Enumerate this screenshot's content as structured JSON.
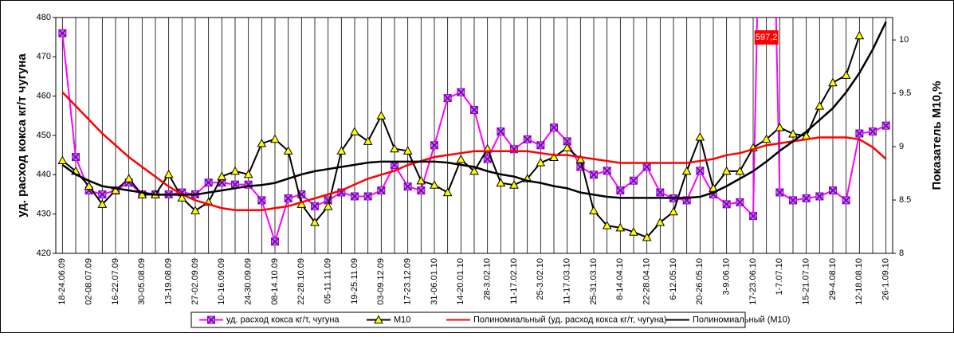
{
  "chart_data": {
    "type": "line",
    "y_label": "уд. расход кокса кг/т чугуна",
    "y2_label": "Показатель М10,%",
    "categories": [
      "18-24.06.09",
      null,
      "02-08.07.09",
      null,
      "16-22.07.09",
      null,
      "30-05.08.09",
      null,
      "13-19.08.09",
      null,
      "27-02.09.09",
      null,
      "10-16.09.09",
      null,
      "24-30.09.09",
      null,
      "08-14.10.09",
      null,
      "22-28.10.09",
      null,
      "05-11.11.09",
      null,
      "19-25.11.09",
      null,
      "03-09.12.09",
      null,
      "17-23.12.09",
      null,
      "31-06.01.10",
      null,
      "14-20.01.10",
      null,
      "28-3.02.10",
      null,
      "11-17.02.10",
      null,
      "25-3.02.10",
      null,
      "11-17.03.10",
      null,
      "25-31.03.10",
      null,
      "8-14.04.10",
      null,
      "22-28.04.10",
      null,
      "6-12.05.10",
      null,
      "20-26.05.10",
      null,
      "3-9.06.10",
      null,
      "17-23.06.10",
      null,
      "1-7.07.10",
      null,
      "15-21.07.10",
      null,
      "29-4.08.10",
      null,
      "12-18.08.10",
      null,
      "26-1.09.10"
    ],
    "ylim": [
      420,
      480
    ],
    "yticks": [
      420,
      430,
      440,
      450,
      460,
      470,
      480
    ],
    "y2lim": [
      8,
      10.21
    ],
    "y2ticks": [
      8,
      8.5,
      9,
      9.5,
      10
    ],
    "grid": "x",
    "legend": "bottom",
    "series": [
      {
        "name": "уд. расход кокса кг/т, чугуна",
        "color": "#ff00ff",
        "marker": "square-x",
        "values": [
          476,
          444.5,
          436,
          435,
          436,
          438,
          435,
          435,
          435,
          435.5,
          435,
          438,
          438,
          437.5,
          437.5,
          433.5,
          423,
          434,
          435,
          432,
          433.5,
          435.5,
          434.5,
          434.5,
          436,
          442.5,
          437,
          436,
          447.5,
          459.5,
          461,
          456.5,
          444,
          451,
          446.5,
          449,
          447.5,
          452,
          448.5,
          442,
          440,
          441,
          436,
          438.5,
          442,
          435.5,
          434,
          433.5,
          441,
          435,
          432.5,
          433,
          429.5,
          597.2,
          435.5,
          433.5,
          434,
          434.5,
          436,
          433.5,
          450.5,
          451,
          452.5
        ],
        "value_labels": [
          null,
          null,
          null,
          null,
          null,
          null,
          null,
          null,
          null,
          null,
          null,
          null,
          null,
          null,
          null,
          null,
          null,
          null,
          null,
          null,
          null,
          null,
          null,
          null,
          null,
          null,
          null,
          null,
          null,
          null,
          null,
          null,
          null,
          null,
          null,
          null,
          null,
          null,
          null,
          null,
          null,
          null,
          null,
          null,
          null,
          null,
          null,
          null,
          null,
          null,
          null,
          null,
          null,
          "597,2",
          null,
          null,
          null,
          null,
          null,
          null,
          null,
          null,
          null
        ]
      },
      {
        "name": "М10",
        "color": "#000000",
        "marker": "triangle",
        "axis": "y2",
        "values": [
          8.87,
          8.77,
          8.63,
          8.46,
          8.59,
          8.7,
          8.55,
          8.55,
          8.74,
          8.52,
          8.4,
          8.48,
          8.72,
          8.77,
          8.74,
          9.03,
          9.07,
          8.96,
          8.46,
          8.29,
          8.44,
          8.96,
          9.14,
          9.05,
          9.29,
          8.98,
          8.96,
          8.68,
          8.64,
          8.57,
          8.88,
          8.77,
          8.98,
          8.66,
          8.64,
          8.7,
          8.85,
          8.9,
          8.99,
          8.88,
          8.4,
          8.26,
          8.24,
          8.2,
          8.15,
          8.29,
          8.39,
          8.77,
          9.09,
          8.61,
          8.77,
          8.77,
          8.99,
          9.07,
          9.18,
          9.12,
          9.1,
          9.38,
          9.6,
          9.67,
          10.04,
          null,
          null
        ]
      },
      {
        "name": "Полиномиальный (уд. расход кокса кг/т, чугуна)",
        "color": "#ff0000",
        "values": [
          461,
          457.5,
          454,
          450.5,
          447.5,
          444.5,
          442,
          439.5,
          437,
          435,
          433.5,
          432.5,
          431.5,
          431,
          431,
          431,
          431.5,
          432,
          433,
          434,
          435,
          436,
          437.5,
          439,
          440,
          441,
          442.5,
          443.5,
          444.5,
          445,
          445.5,
          446,
          446,
          446,
          446,
          446,
          445.5,
          445,
          445,
          444.5,
          444,
          443.5,
          443,
          443,
          443,
          443,
          443,
          443,
          443.5,
          444,
          445,
          445.5,
          446.5,
          447.5,
          448,
          448.5,
          449,
          449.5,
          449.5,
          449.5,
          449,
          447,
          444
        ]
      },
      {
        "name": "Полиномиальный (М10)",
        "color": "#000000",
        "axis": "y2",
        "values": [
          8.83,
          8.74,
          8.68,
          8.63,
          8.61,
          8.59,
          8.57,
          8.55,
          8.55,
          8.55,
          8.55,
          8.57,
          8.59,
          8.61,
          8.63,
          8.64,
          8.66,
          8.7,
          8.74,
          8.77,
          8.79,
          8.81,
          8.83,
          8.85,
          8.86,
          8.86,
          8.86,
          8.86,
          8.86,
          8.85,
          8.83,
          8.81,
          8.77,
          8.74,
          8.72,
          8.68,
          8.66,
          8.63,
          8.61,
          8.57,
          8.55,
          8.53,
          8.52,
          8.52,
          8.52,
          8.52,
          8.52,
          8.52,
          8.53,
          8.57,
          8.63,
          8.7,
          8.77,
          8.86,
          8.96,
          9.05,
          9.14,
          9.25,
          9.36,
          9.51,
          9.69,
          9.91,
          10.17
        ]
      }
    ]
  }
}
